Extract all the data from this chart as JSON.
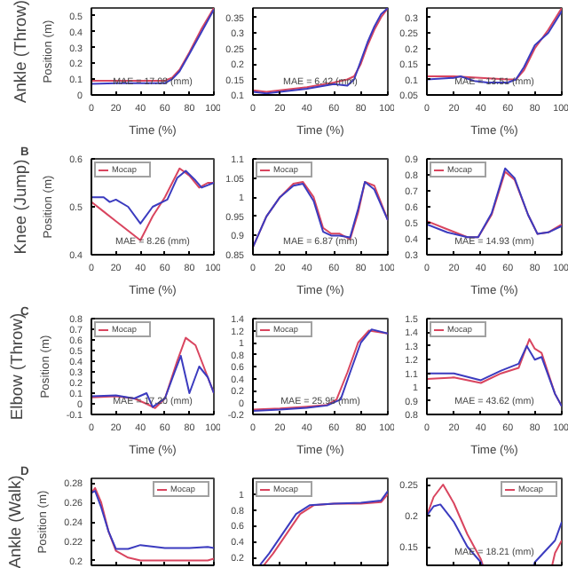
{
  "chart_data": [
    {
      "type": "line",
      "title": "Ankle (Throw)",
      "ylabel": "Position (m)",
      "xlabel": "Time (%)",
      "annotations": [
        "MAE = 17.08 (mm)"
      ],
      "xlim": [
        0,
        100
      ],
      "xticks": [
        0,
        20,
        40,
        60,
        80,
        100
      ],
      "ylim": [
        0,
        0.55
      ],
      "yticks": [
        0,
        0.1,
        0.2,
        0.3,
        0.4,
        0.5
      ],
      "series": [
        {
          "color": "#d9455f",
          "x": [
            0,
            20,
            40,
            60,
            66,
            72,
            80,
            90,
            100
          ],
          "values": [
            0.09,
            0.09,
            0.09,
            0.09,
            0.11,
            0.16,
            0.27,
            0.42,
            0.55
          ]
        },
        {
          "color": "#3b3bbf",
          "x": [
            0,
            20,
            40,
            60,
            66,
            72,
            80,
            90,
            100
          ],
          "values": [
            0.07,
            0.075,
            0.075,
            0.075,
            0.1,
            0.15,
            0.26,
            0.4,
            0.54
          ]
        }
      ]
    },
    {
      "type": "line",
      "annotations": [
        "MAE = 6.42 (mm)"
      ],
      "xlabel": "Time (%)",
      "xlim": [
        0,
        100
      ],
      "xticks": [
        0,
        20,
        40,
        60,
        80,
        100
      ],
      "ylim": [
        0.1,
        0.38
      ],
      "yticks": [
        0.1,
        0.15,
        0.2,
        0.25,
        0.3,
        0.35
      ],
      "series": [
        {
          "color": "#d9455f",
          "x": [
            0,
            10,
            20,
            40,
            60,
            70,
            75,
            80,
            85,
            90,
            95,
            100
          ],
          "values": [
            0.115,
            0.11,
            0.115,
            0.125,
            0.14,
            0.15,
            0.16,
            0.2,
            0.26,
            0.31,
            0.35,
            0.38
          ]
        },
        {
          "color": "#3b3bbf",
          "x": [
            0,
            10,
            20,
            40,
            60,
            70,
            75,
            80,
            85,
            90,
            95,
            100
          ],
          "values": [
            0.11,
            0.105,
            0.11,
            0.12,
            0.135,
            0.13,
            0.15,
            0.21,
            0.27,
            0.32,
            0.36,
            0.38
          ]
        }
      ]
    },
    {
      "type": "line",
      "annotations": [
        "MAE = 13.51 (mm)"
      ],
      "xlabel": "Time (%)",
      "xlim": [
        0,
        100
      ],
      "xticks": [
        0,
        20,
        40,
        60,
        80,
        100
      ],
      "ylim": [
        0.05,
        0.33
      ],
      "yticks": [
        0.05,
        0.1,
        0.15,
        0.2,
        0.25,
        0.3
      ],
      "series": [
        {
          "color": "#d9455f",
          "x": [
            0,
            20,
            40,
            60,
            66,
            72,
            80,
            90,
            100
          ],
          "values": [
            0.11,
            0.11,
            0.105,
            0.1,
            0.1,
            0.13,
            0.2,
            0.26,
            0.33
          ]
        },
        {
          "color": "#3b3bbf",
          "x": [
            0,
            20,
            25,
            35,
            45,
            60,
            66,
            72,
            80,
            90,
            100
          ],
          "values": [
            0.1,
            0.105,
            0.11,
            0.095,
            0.09,
            0.09,
            0.1,
            0.14,
            0.21,
            0.25,
            0.32
          ]
        }
      ]
    },
    {
      "type": "line",
      "title": "Knee (Jump)",
      "subtitle": "B",
      "ylabel": "Position (m)",
      "xlabel": "Time (%)",
      "annotations": [
        "MAE = 8.26 (mm)"
      ],
      "legend": "top left",
      "xlim": [
        0,
        100
      ],
      "xticks": [
        0,
        20,
        40,
        60,
        80,
        100
      ],
      "ylim": [
        0.4,
        0.6
      ],
      "yticks": [
        0.4,
        0.5,
        0.6
      ],
      "series": [
        {
          "name": "Mocap",
          "color": "#d9455f",
          "x": [
            0,
            10,
            20,
            30,
            40,
            50,
            60,
            66,
            72,
            80,
            88,
            95,
            100
          ],
          "values": [
            0.51,
            0.49,
            0.47,
            0.45,
            0.43,
            0.48,
            0.52,
            0.55,
            0.58,
            0.565,
            0.54,
            0.55,
            0.55
          ]
        },
        {
          "color": "#3b3bbf",
          "x": [
            0,
            10,
            15,
            20,
            30,
            40,
            50,
            62,
            70,
            77,
            85,
            90,
            100
          ],
          "values": [
            0.52,
            0.52,
            0.51,
            0.515,
            0.5,
            0.465,
            0.5,
            0.515,
            0.56,
            0.575,
            0.555,
            0.54,
            0.55
          ]
        }
      ]
    },
    {
      "type": "line",
      "xlabel": "Time (%)",
      "annotations": [
        "MAE = 6.87 (mm)"
      ],
      "legend": "top left",
      "xlim": [
        0,
        100
      ],
      "xticks": [
        0,
        20,
        40,
        60,
        80,
        100
      ],
      "ylim": [
        0.85,
        1.1
      ],
      "yticks": [
        0.85,
        0.9,
        0.95,
        1,
        1.05,
        1.1
      ],
      "series": [
        {
          "name": "Mocap",
          "color": "#d9455f",
          "x": [
            0,
            10,
            20,
            30,
            37,
            45,
            52,
            58,
            64,
            72,
            78,
            83,
            90,
            100
          ],
          "values": [
            0.87,
            0.95,
            1.0,
            1.035,
            1.04,
            1.0,
            0.92,
            0.905,
            0.905,
            0.89,
            0.96,
            1.04,
            1.03,
            0.94
          ]
        },
        {
          "color": "#3b3bbf",
          "x": [
            0,
            10,
            20,
            30,
            37,
            45,
            52,
            58,
            64,
            72,
            78,
            83,
            90,
            100
          ],
          "values": [
            0.87,
            0.95,
            1.0,
            1.03,
            1.035,
            0.99,
            0.91,
            0.9,
            0.9,
            0.895,
            0.97,
            1.04,
            1.02,
            0.94
          ]
        }
      ]
    },
    {
      "type": "line",
      "xlabel": "Time (%)",
      "annotations": [
        "MAE = 14.93 (mm)"
      ],
      "legend": "top left",
      "xlim": [
        0,
        100
      ],
      "xticks": [
        0,
        20,
        40,
        60,
        80,
        100
      ],
      "ylim": [
        0.3,
        0.9
      ],
      "yticks": [
        0.3,
        0.4,
        0.5,
        0.6,
        0.7,
        0.8,
        0.9
      ],
      "series": [
        {
          "name": "Mocap",
          "color": "#d9455f",
          "x": [
            0,
            15,
            30,
            38,
            48,
            58,
            65,
            75,
            82,
            90,
            100
          ],
          "values": [
            0.51,
            0.46,
            0.41,
            0.41,
            0.55,
            0.82,
            0.77,
            0.55,
            0.43,
            0.44,
            0.49
          ]
        },
        {
          "color": "#3b3bbf",
          "x": [
            0,
            15,
            30,
            38,
            48,
            58,
            65,
            75,
            82,
            90,
            100
          ],
          "values": [
            0.49,
            0.44,
            0.41,
            0.41,
            0.56,
            0.84,
            0.78,
            0.55,
            0.43,
            0.44,
            0.48
          ]
        }
      ]
    },
    {
      "type": "line",
      "title": "Elbow (Throw)",
      "subtitle": "C",
      "ylabel": "Position (m)",
      "xlabel": "Time (%)",
      "annotations": [
        "MAE = 17.20 (mm)"
      ],
      "legend": "top left",
      "xlim": [
        0,
        100
      ],
      "xticks": [
        0,
        20,
        40,
        60,
        80,
        100
      ],
      "ylim": [
        -0.1,
        0.8
      ],
      "yticks": [
        -0.1,
        0,
        0.1,
        0.2,
        0.3,
        0.4,
        0.5,
        0.6,
        0.7,
        0.8
      ],
      "series": [
        {
          "name": "Mocap",
          "color": "#d9455f",
          "x": [
            0,
            20,
            35,
            45,
            52,
            60,
            70,
            77,
            85,
            90,
            100
          ],
          "values": [
            0.06,
            0.07,
            0.05,
            0,
            -0.04,
            0.05,
            0.4,
            0.62,
            0.55,
            0.4,
            0.1
          ]
        },
        {
          "color": "#3b3bbf",
          "x": [
            0,
            20,
            35,
            45,
            50,
            60,
            68,
            73,
            80,
            88,
            95,
            100
          ],
          "values": [
            0.07,
            0.08,
            0.05,
            0.1,
            -0.03,
            0.05,
            0.3,
            0.45,
            0.1,
            0.35,
            0.25,
            0.1
          ]
        }
      ]
    },
    {
      "type": "line",
      "xlabel": "Time (%)",
      "annotations": [
        "MAE = 25.95 (mm)"
      ],
      "legend": "top left",
      "xlim": [
        0,
        100
      ],
      "xticks": [
        0,
        20,
        40,
        60,
        80,
        100
      ],
      "ylim": [
        -0.2,
        1.4
      ],
      "yticks": [
        -0.2,
        0,
        0.2,
        0.4,
        0.6,
        0.8,
        1,
        1.2,
        1.4
      ],
      "series": [
        {
          "name": "Mocap",
          "color": "#d9455f",
          "x": [
            0,
            20,
            40,
            55,
            62,
            70,
            78,
            86,
            100
          ],
          "values": [
            -0.12,
            -0.1,
            -0.07,
            -0.04,
            0.05,
            0.5,
            1.0,
            1.2,
            1.15
          ]
        },
        {
          "color": "#3b3bbf",
          "x": [
            0,
            20,
            40,
            55,
            65,
            72,
            80,
            88,
            100
          ],
          "values": [
            -0.14,
            -0.12,
            -0.09,
            -0.05,
            0.05,
            0.5,
            1.0,
            1.22,
            1.15
          ]
        }
      ]
    },
    {
      "type": "line",
      "xlabel": "Time (%)",
      "annotations": [
        "MAE = 43.62 (mm)"
      ],
      "legend": "top left",
      "xlim": [
        0,
        100
      ],
      "xticks": [
        0,
        20,
        40,
        60,
        80,
        100
      ],
      "ylim": [
        0.8,
        1.5
      ],
      "yticks": [
        0.8,
        0.9,
        1,
        1.1,
        1.2,
        1.3,
        1.4,
        1.5
      ],
      "series": [
        {
          "name": "Mocap",
          "color": "#d9455f",
          "x": [
            0,
            20,
            40,
            55,
            68,
            76,
            80,
            85,
            95,
            100
          ],
          "values": [
            1.06,
            1.07,
            1.03,
            1.1,
            1.14,
            1.35,
            1.28,
            1.25,
            0.95,
            0.86
          ]
        },
        {
          "color": "#3b3bbf",
          "x": [
            0,
            20,
            40,
            55,
            68,
            74,
            80,
            85,
            95,
            100
          ],
          "values": [
            1.1,
            1.1,
            1.05,
            1.12,
            1.17,
            1.3,
            1.2,
            1.22,
            0.95,
            0.86
          ]
        }
      ]
    },
    {
      "type": "line",
      "title": "Ankle (Walk)",
      "subtitle": "D",
      "ylabel": "Position (m)",
      "legend": "top right",
      "tick_labels": "y",
      "xlim": [
        0,
        100
      ],
      "xticks": [
        0,
        20,
        40,
        60,
        80,
        100
      ],
      "ylim": [
        0.195,
        0.285
      ],
      "yticks": [
        0.2,
        0.22,
        0.24,
        0.26,
        0.28
      ],
      "series": [
        {
          "name": "Mocap",
          "color": "#d9455f",
          "x": [
            0,
            3,
            8,
            14,
            20,
            30,
            40,
            60,
            80,
            95,
            100
          ],
          "values": [
            0.27,
            0.275,
            0.26,
            0.23,
            0.21,
            0.203,
            0.2,
            0.2,
            0.2,
            0.2,
            0.202
          ]
        },
        {
          "color": "#3b3bbf",
          "x": [
            0,
            3,
            8,
            14,
            20,
            30,
            40,
            60,
            80,
            95,
            100
          ],
          "values": [
            0.27,
            0.272,
            0.255,
            0.23,
            0.212,
            0.212,
            0.216,
            0.213,
            0.213,
            0.214,
            0.213
          ]
        }
      ]
    },
    {
      "type": "line",
      "legend": "top left",
      "tick_labels": "y",
      "xlim": [
        0,
        100
      ],
      "xticks": [
        0,
        20,
        40,
        60,
        80,
        100
      ],
      "ylim": [
        0.1,
        1.2
      ],
      "yticks": [
        0.2,
        0.4,
        0.6,
        0.8,
        1
      ],
      "series": [
        {
          "name": "Mocap",
          "color": "#d9455f",
          "x": [
            8,
            15,
            25,
            35,
            45,
            60,
            80,
            95,
            100
          ],
          "values": [
            0.1,
            0.25,
            0.5,
            0.75,
            0.86,
            0.88,
            0.88,
            0.9,
            1.0
          ]
        },
        {
          "color": "#3b3bbf",
          "x": [
            5,
            12,
            22,
            32,
            42,
            60,
            80,
            95,
            100
          ],
          "values": [
            0.1,
            0.25,
            0.5,
            0.75,
            0.86,
            0.88,
            0.89,
            0.92,
            1.04
          ]
        }
      ]
    },
    {
      "type": "line",
      "annotations": [
        "MAE = 18.21 (mm)"
      ],
      "legend": "top right",
      "tick_labels": "y",
      "xlim": [
        0,
        100
      ],
      "xticks": [
        0,
        20,
        40,
        60,
        80,
        100
      ],
      "ylim": [
        0.12,
        0.26
      ],
      "yticks": [
        0.15,
        0.2,
        0.25
      ],
      "series": [
        {
          "name": "Mocap",
          "color": "#d9455f",
          "x": [
            0,
            5,
            12,
            20,
            30,
            40,
            60,
            80,
            95,
            100
          ],
          "values": [
            0.2,
            0.23,
            0.25,
            0.22,
            0.17,
            0.13,
            null,
            null,
            0.14,
            0.16
          ]
        },
        {
          "color": "#3b3bbf",
          "x": [
            0,
            5,
            10,
            20,
            30,
            40,
            60,
            80,
            95,
            100
          ],
          "values": [
            0.2,
            0.215,
            0.218,
            0.19,
            0.15,
            0.125,
            null,
            0.125,
            0.16,
            0.19
          ]
        }
      ]
    }
  ]
}
